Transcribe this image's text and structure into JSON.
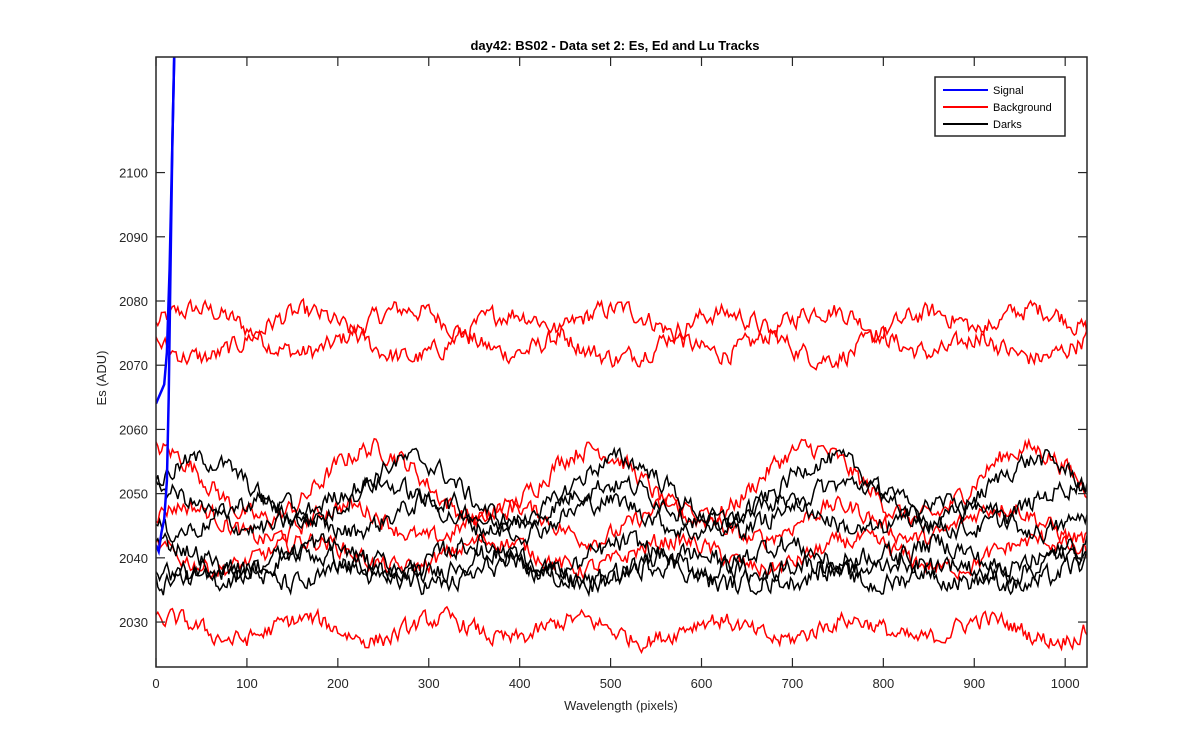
{
  "chart_data": {
    "type": "line",
    "title": "day42: BS02 - Data set 2: Es, Ed and Lu Tracks",
    "xlabel": "Wavelength (pixels)",
    "ylabel": "Es (ADU)",
    "xlim": [
      0,
      1024
    ],
    "ylim": [
      2023,
      2118
    ],
    "xticks": [
      0,
      100,
      200,
      300,
      400,
      500,
      600,
      700,
      800,
      900,
      1000
    ],
    "yticks": [
      2030,
      2040,
      2050,
      2060,
      2070,
      2080,
      2090,
      2100
    ],
    "grid": false,
    "legend_position": "top-right",
    "legend": [
      {
        "label": "Signal",
        "color": "#0000ff"
      },
      {
        "label": "Background",
        "color": "#ff0000"
      },
      {
        "label": "Darks",
        "color": "#000000"
      }
    ],
    "signal_tracks": [
      {
        "group": "Signal",
        "color": "#0000ff",
        "x": [
          0,
          3,
          6,
          9,
          12,
          15,
          18,
          20
        ],
        "y": [
          2064,
          2065,
          2066,
          2067,
          2072,
          2085,
          2105,
          2118
        ]
      },
      {
        "group": "Signal",
        "color": "#0000ff",
        "x": [
          0,
          3,
          6,
          9,
          12,
          14,
          16,
          18,
          20
        ],
        "y": [
          2042,
          2041,
          2044,
          2046,
          2052,
          2065,
          2085,
          2105,
          2118
        ]
      }
    ],
    "noise_tracks": [
      {
        "group": "Background",
        "color": "#ff0000",
        "mean": 2075.3,
        "amp": 3.4,
        "period": 230,
        "phase": 0.3,
        "noise": 1.3
      },
      {
        "group": "Background",
        "color": "#ff0000",
        "mean": 2074.6,
        "amp": 3.5,
        "period": 230,
        "phase": 3.4,
        "noise": 1.3
      },
      {
        "group": "Background",
        "color": "#ff0000",
        "mean": 2051.5,
        "amp": 5.5,
        "period": 240,
        "phase": 1.6,
        "noise": 1.3
      },
      {
        "group": "Background",
        "color": "#ff0000",
        "mean": 2045.5,
        "amp": 2.6,
        "period": 180,
        "phase": 0.5,
        "noise": 1.2
      },
      {
        "group": "Background",
        "color": "#ff0000",
        "mean": 2040.5,
        "amp": 2.2,
        "period": 200,
        "phase": 2.5,
        "noise": 1.2
      },
      {
        "group": "Background",
        "color": "#ff0000",
        "mean": 2028.8,
        "amp": 1.6,
        "period": 150,
        "phase": 1.0,
        "noise": 1.2
      },
      {
        "group": "Darks",
        "color": "#000000",
        "mean": 2050.5,
        "amp": 4.8,
        "period": 230,
        "phase": 0.2,
        "noise": 1.3
      },
      {
        "group": "Darks",
        "color": "#000000",
        "mean": 2048.0,
        "amp": 3.5,
        "period": 260,
        "phase": 2.0,
        "noise": 1.3
      },
      {
        "group": "Darks",
        "color": "#000000",
        "mean": 2046.5,
        "amp": 2.4,
        "period": 190,
        "phase": 4.0,
        "noise": 1.3
      },
      {
        "group": "Darks",
        "color": "#000000",
        "mean": 2040.0,
        "amp": 2.2,
        "period": 170,
        "phase": 1.2,
        "noise": 1.4
      },
      {
        "group": "Darks",
        "color": "#000000",
        "mean": 2038.5,
        "amp": 2.2,
        "period": 210,
        "phase": 3.0,
        "noise": 1.4
      },
      {
        "group": "Darks",
        "color": "#000000",
        "mean": 2037.5,
        "amp": 1.8,
        "period": 160,
        "phase": 5.0,
        "noise": 1.4
      }
    ]
  }
}
